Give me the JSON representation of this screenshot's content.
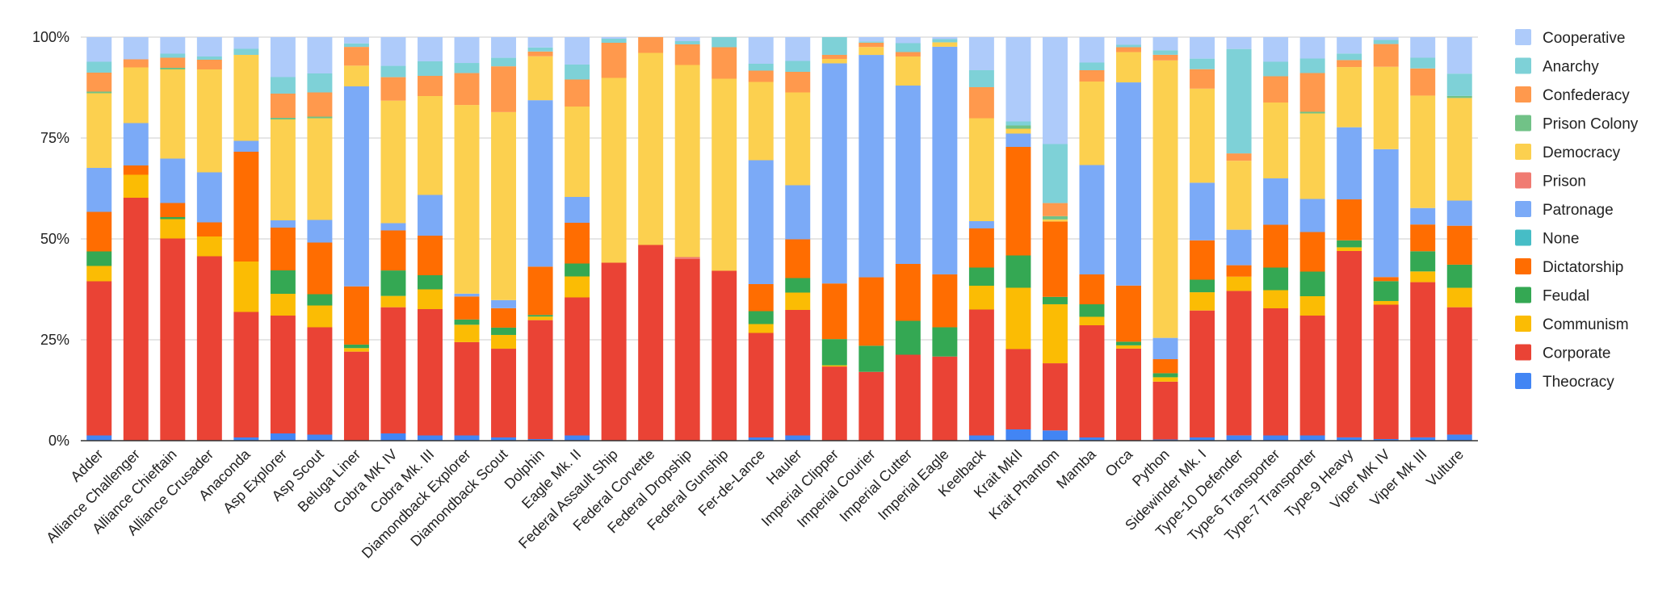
{
  "chart_data": {
    "type": "stacked-bar-100",
    "title": "",
    "xlabel": "",
    "ylabel": "",
    "ylim": [
      0,
      100
    ],
    "yticks": [
      "0%",
      "25%",
      "50%",
      "75%",
      "100%"
    ],
    "legend_position": "right",
    "categories": [
      "Adder",
      "Alliance Challenger",
      "Alliance Chieftain",
      "Alliance Crusader",
      "Anaconda",
      "Asp Explorer",
      "Asp Scout",
      "Beluga Liner",
      "Cobra MK IV",
      "Cobra Mk. III",
      "Diamondback Explorer",
      "Diamondback Scout",
      "Dolphin",
      "Eagle Mk. II",
      "Federal Assault Ship",
      "Federal Corvette",
      "Federal Dropship",
      "Federal Gunship",
      "Fer-de-Lance",
      "Hauler",
      "Imperial Clipper",
      "Imperial Courier",
      "Imperial Cutter",
      "Imperial Eagle",
      "Keelback",
      "Krait MkII",
      "Krait Phantom",
      "Mamba",
      "Orca",
      "Python",
      "Sidewinder Mk. I",
      "Type-10 Defender",
      "Type-6 Transporter",
      "Type-7 Transporter",
      "Type-9 Heavy",
      "Viper MK IV",
      "Viper Mk III",
      "Vulture"
    ],
    "series": [
      {
        "name": "Theocracy",
        "color": "#4285f4",
        "values": [
          1.3,
          0,
          0,
          0,
          0.8,
          1.8,
          1.5,
          0,
          1.8,
          1.3,
          1.3,
          0.8,
          0.4,
          1.3,
          0,
          0,
          0,
          0,
          0.8,
          1.3,
          0,
          0,
          0,
          0,
          1.3,
          2.8,
          2.5,
          0.8,
          0,
          0.3,
          0.8,
          1.3,
          1.3,
          1.3,
          0.8,
          0.4,
          0.8,
          1.5
        ]
      },
      {
        "name": "Corporate",
        "color": "#ea4335",
        "values": [
          38.2,
          60.2,
          50.1,
          45.7,
          31.1,
          29.2,
          26.6,
          22.8,
          31.2,
          31.3,
          23.1,
          21.9,
          29.8,
          34.2,
          44.1,
          48.5,
          45.0,
          42.1,
          25.9,
          31.1,
          18.4,
          17.4,
          21.3,
          21.0,
          31.2,
          19.9,
          16.4,
          27.8,
          22.8,
          14.4,
          31.3,
          35.4,
          31.5,
          29.7,
          45.5,
          33.1,
          37.7,
          31.4
        ]
      },
      {
        "name": "Communism",
        "color": "#fbbc04",
        "values": [
          3.8,
          5.7,
          4.8,
          4.9,
          12.5,
          5.4,
          5.4,
          0.9,
          2.8,
          4.9,
          4.3,
          3.4,
          0.9,
          5.2,
          0,
          0,
          0,
          0,
          2.2,
          4.3,
          0.3,
          0,
          0,
          0,
          5.9,
          15.2,
          14.4,
          2.1,
          0.8,
          1.1,
          4.5,
          3.5,
          4.5,
          4.8,
          0.9,
          0.9,
          2.6,
          4.8
        ]
      },
      {
        "name": "Feudal",
        "color": "#34a853",
        "values": [
          3.6,
          0,
          0.5,
          0,
          0,
          5.8,
          2.8,
          0.9,
          6.3,
          3.5,
          1.3,
          1.8,
          0.4,
          3.2,
          0,
          0,
          0,
          0,
          3.2,
          3.6,
          6.5,
          6.6,
          8.4,
          7.3,
          4.5,
          8.0,
          1.8,
          3.1,
          0.9,
          1.0,
          3.1,
          0,
          5.6,
          6.1,
          1.7,
          4.9,
          4.9,
          5.7
        ]
      },
      {
        "name": "Dictatorship",
        "color": "#ff6d01",
        "values": [
          9.8,
          2.3,
          3.5,
          3.5,
          27.2,
          10.6,
          12.8,
          14.9,
          9.9,
          9.8,
          5.7,
          4.8,
          12.1,
          10.1,
          0,
          0,
          0,
          0,
          6.7,
          9.6,
          13.8,
          17.3,
          14.1,
          13.2,
          9.7,
          26.9,
          18.4,
          7.4,
          13.9,
          3.5,
          9.7,
          2.8,
          10.6,
          9.8,
          10.0,
          1.0,
          6.5,
          9.6
        ]
      },
      {
        "name": "None",
        "color": "#46bdc6",
        "values": [
          0,
          0,
          0,
          0,
          0,
          0,
          0,
          0,
          0,
          0,
          0,
          0,
          0,
          0,
          0,
          0,
          0,
          0,
          0,
          0,
          0,
          0,
          0,
          0,
          0,
          0,
          0,
          0,
          0,
          0,
          0,
          0,
          0,
          0,
          0,
          0,
          0,
          0
        ]
      },
      {
        "name": "Patronage",
        "color": "#7baaf7",
        "values": [
          10.9,
          10.5,
          11.0,
          12.4,
          2.7,
          1.8,
          5.6,
          51.2,
          1.8,
          10.1,
          0.7,
          2.0,
          41.7,
          6.4,
          0,
          0,
          0,
          0,
          30.7,
          13.4,
          54.6,
          56.2,
          44.2,
          56.8,
          1.8,
          3.3,
          0,
          27.1,
          50.3,
          5.3,
          14.2,
          8.7,
          11.5,
          8.2,
          17.6,
          31.5,
          4.0,
          6.2
        ]
      },
      {
        "name": "Prison",
        "color": "#f07b72",
        "values": [
          0,
          0,
          0,
          0,
          0,
          0,
          0,
          0,
          0,
          0,
          0,
          0,
          0,
          0,
          0,
          0,
          0.5,
          0,
          0,
          0,
          0,
          0,
          0,
          0,
          0,
          0,
          0,
          0,
          0,
          0,
          0,
          0,
          0,
          0,
          0,
          0,
          0,
          0
        ]
      },
      {
        "name": "Democracy",
        "color": "#fcd04f",
        "values": [
          18.5,
          13.8,
          22.1,
          25.5,
          21.3,
          25.0,
          25.2,
          5.3,
          30.3,
          24.5,
          46.7,
          46.4,
          11.0,
          22.4,
          45.8,
          47.6,
          47.6,
          47.6,
          19.4,
          23.0,
          1.1,
          2.0,
          7.2,
          1.1,
          25.5,
          1.2,
          0.5,
          20.7,
          7.5,
          69.1,
          23.2,
          16.9,
          18.8,
          21.2,
          14.7,
          20.3,
          27.3,
          25.3
        ]
      },
      {
        "name": "Prison Colony",
        "color": "#71c287",
        "values": [
          0.4,
          0,
          0.4,
          0,
          0,
          0.4,
          0.4,
          0,
          0,
          0,
          0,
          0,
          0,
          0,
          0,
          0,
          0,
          0,
          0,
          0,
          0,
          0,
          0,
          0,
          0,
          0.8,
          0.8,
          0,
          0,
          0,
          0,
          0,
          0,
          0.4,
          0,
          0,
          0,
          0.5
        ]
      },
      {
        "name": "Confederacy",
        "color": "#ff994d",
        "values": [
          4.7,
          2.0,
          2.5,
          2.4,
          0,
          6.0,
          6.0,
          4.8,
          5.8,
          5.0,
          7.9,
          11.3,
          1.2,
          6.7,
          8.7,
          3.9,
          5.1,
          7.8,
          2.8,
          5.1,
          1.0,
          1.1,
          1.1,
          0,
          7.7,
          0,
          3.2,
          2.8,
          1.2,
          1.4,
          4.8,
          1.8,
          6.5,
          9.6,
          1.7,
          5.6,
          6.6,
          0
        ]
      },
      {
        "name": "Anarchy",
        "color": "#7ed1d7",
        "values": [
          2.7,
          0,
          1.0,
          0.8,
          1.5,
          4.1,
          4.7,
          0.9,
          2.8,
          3.6,
          2.5,
          2.1,
          1.0,
          3.7,
          1.0,
          0,
          0.8,
          2.5,
          1.7,
          2.7,
          4.4,
          0.3,
          2.2,
          0.8,
          4.2,
          1.0,
          14.4,
          1.9,
          0.6,
          1.1,
          2.6,
          25.6,
          3.6,
          3.6,
          1.6,
          1.0,
          2.6,
          5.5
        ]
      },
      {
        "name": "Cooperative",
        "color": "#aecbfa",
        "values": [
          6.1,
          5.5,
          4.1,
          4.8,
          2.9,
          9.9,
          9.0,
          1.6,
          7.1,
          6.0,
          6.4,
          5.1,
          2.6,
          6.8,
          0.4,
          0,
          1.0,
          0,
          6.6,
          5.9,
          0,
          1.1,
          1.5,
          0.5,
          8.2,
          20.9,
          26.1,
          6.3,
          1.9,
          3.3,
          5.3,
          2.9,
          6.1,
          5.3,
          4.0,
          0.7,
          5.0,
          9.0
        ]
      }
    ]
  }
}
